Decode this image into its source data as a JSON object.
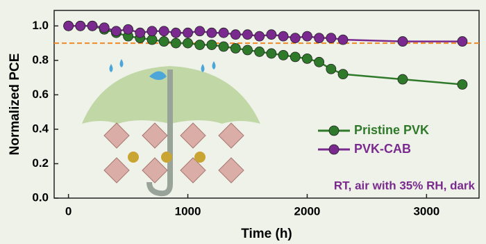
{
  "chart_data": {
    "type": "line",
    "xlabel": "Time (h)",
    "ylabel": "Normalized PCE",
    "x": [
      0,
      100,
      200,
      300,
      400,
      500,
      600,
      700,
      800,
      900,
      1000,
      1100,
      1200,
      1300,
      1400,
      1500,
      1600,
      1700,
      1800,
      1900,
      2000,
      2100,
      2200,
      2300,
      2800,
      3300
    ],
    "series": [
      {
        "name": "Pristine PVK",
        "color": "#2f7a2a",
        "values": [
          1.0,
          1.0,
          1.0,
          0.98,
          0.96,
          0.94,
          0.93,
          0.92,
          0.91,
          0.9,
          0.9,
          0.89,
          0.89,
          0.88,
          0.87,
          0.86,
          0.85,
          0.84,
          0.83,
          0.82,
          0.81,
          0.79,
          0.75,
          0.72,
          0.69,
          0.66
        ]
      },
      {
        "name": "PVK-CAB",
        "color": "#7a2a8e",
        "values": [
          1.0,
          1.0,
          1.0,
          0.99,
          0.97,
          0.98,
          0.96,
          0.97,
          0.97,
          0.96,
          0.96,
          0.97,
          0.96,
          0.96,
          0.95,
          0.95,
          0.94,
          0.95,
          0.94,
          0.93,
          0.94,
          0.93,
          0.93,
          0.92,
          0.91,
          0.91
        ]
      }
    ],
    "xlim": [
      -120,
      3440
    ],
    "ylim": [
      0,
      1.09
    ],
    "xticks": [
      0,
      1000,
      2000,
      3000
    ],
    "yticks": [
      {
        "value": 0,
        "label": "0.0"
      },
      0.2,
      0.4,
      0.6,
      0.8,
      {
        "value": 1,
        "label": "1.0"
      }
    ],
    "reference_line": {
      "value": 0.9,
      "color": "#f08a24"
    },
    "legend": "lower right",
    "annotation": "RT, air with 35% RH, dark"
  }
}
